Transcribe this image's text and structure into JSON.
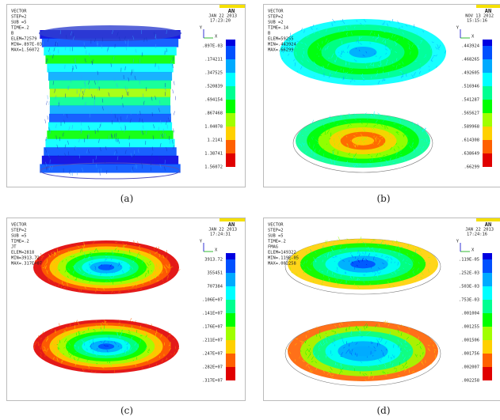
{
  "panels": [
    {
      "caption": "(a)",
      "logo": "AN",
      "axis_x": "X",
      "axis_y": "Y",
      "header": [
        "VECTOR",
        "STEP=2",
        "SUB =5",
        "TIME=.2",
        "B",
        "ELEM=72579",
        "MIN=.897E-03",
        "MAX=1.56072"
      ],
      "date": "JAN 22 2013",
      "time": "17:23:20",
      "legend": [
        ".897E-03",
        ".174211",
        ".347525",
        ".520839",
        ".694154",
        ".867468",
        "1.04078",
        "1.2141",
        "1.38741",
        "1.56072"
      ]
    },
    {
      "caption": "(b)",
      "logo": "AN",
      "axis_x": "X",
      "axis_y": "Y",
      "header": [
        "VECTOR",
        "STEP=2",
        "SUB =2",
        "TIME=.14",
        "B",
        "ELEM=59255",
        "MIN=.443924",
        "MAX=.66299"
      ],
      "date": "NOV 13 2012",
      "time": "15:15:16",
      "legend": [
        ".443924",
        ".468265",
        ".492605",
        ".516946",
        ".541287",
        ".565627",
        ".589968",
        ".614308",
        ".638649",
        ".66299"
      ]
    },
    {
      "caption": "(c)",
      "logo": "AN",
      "axis_x": "X",
      "axis_y": "Y",
      "header": [
        "VECTOR",
        "STEP=2",
        "SUB =5",
        "TIME=.2",
        "JT",
        "ELEM=2818",
        "MIN=3913.72",
        "MAX=.317E+07"
      ],
      "date": "JAN 22 2013",
      "time": "17:24:31",
      "legend": [
        "3913.72",
        "355451",
        "707384",
        ".106E+07",
        ".141E+07",
        ".176E+07",
        ".211E+07",
        ".247E+07",
        ".282E+07",
        ".317E+07"
      ]
    },
    {
      "caption": "(d)",
      "logo": "AN",
      "axis_x": "X",
      "axis_y": "Y",
      "header": [
        "VECTOR",
        "STEP=2",
        "SUB =5",
        "TIME=.2",
        "FMAG",
        "ELEM=149322",
        "MIN=.119E-05",
        "MAX=.002258"
      ],
      "date": "JAN 22 2013",
      "time": "17:24:16",
      "legend": [
        ".119E-05",
        ".252E-03",
        ".503E-03",
        ".753E-03",
        ".001004",
        ".001255",
        ".001506",
        ".001756",
        ".002007",
        ".002258"
      ]
    }
  ]
}
